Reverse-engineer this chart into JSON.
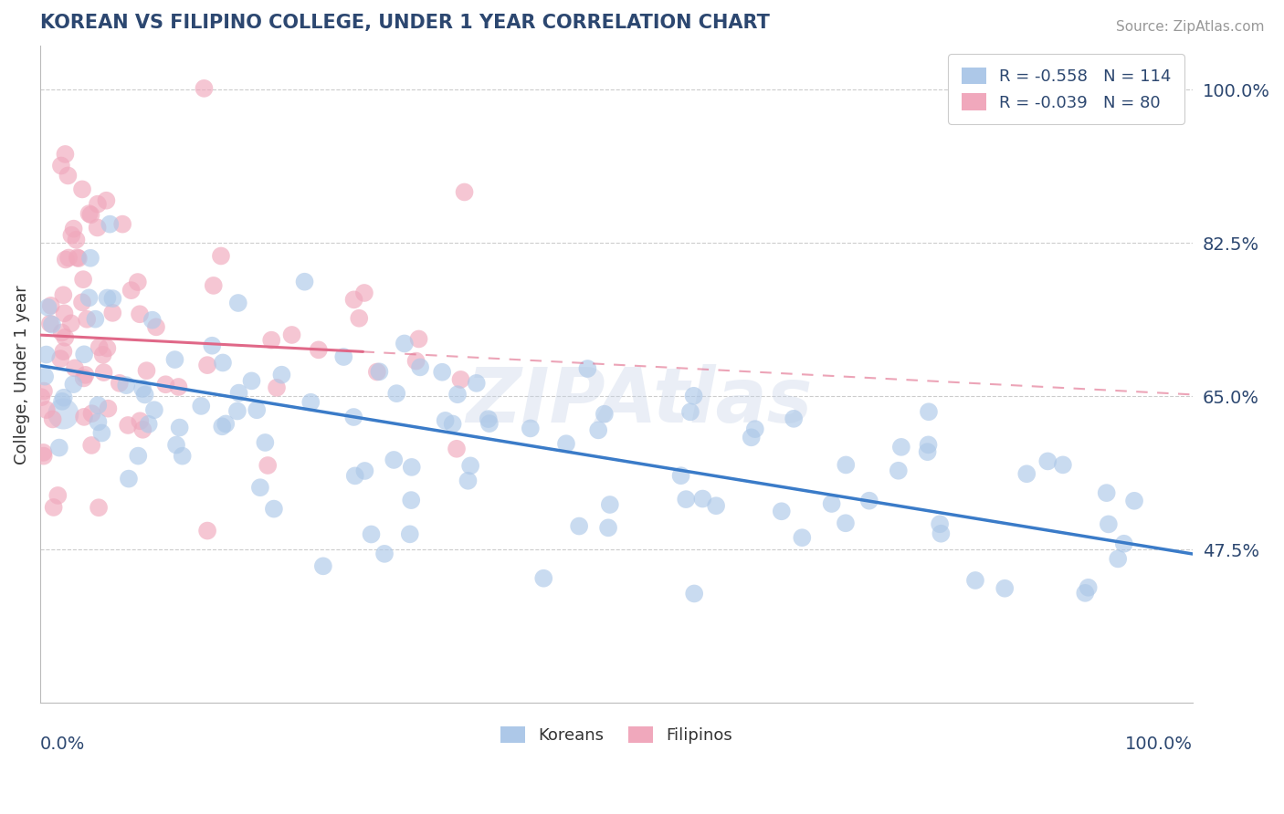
{
  "title": "KOREAN VS FILIPINO COLLEGE, UNDER 1 YEAR CORRELATION CHART",
  "source_text": "Source: ZipAtlas.com",
  "ylabel": "College, Under 1 year",
  "right_yticks": [
    "100.0%",
    "82.5%",
    "65.0%",
    "47.5%"
  ],
  "right_ytick_vals": [
    1.0,
    0.825,
    0.65,
    0.475
  ],
  "watermark": "ZIPAtlas",
  "legend_korean": "R = -0.558   N = 114",
  "legend_filipino": "R = -0.039   N = 80",
  "korean_color": "#adc8e8",
  "filipino_color": "#f0a8bc",
  "korean_line_color": "#3a7bc8",
  "filipino_line_color": "#e06888",
  "title_color": "#2c4770",
  "source_color": "#999999",
  "grid_color": "#cccccc",
  "background_color": "#ffffff",
  "xlim": [
    0,
    1.0
  ],
  "ylim": [
    0.3,
    1.05
  ],
  "n_korean": 114,
  "n_filipino": 80,
  "korean_seed": 12,
  "filipino_seed": 7
}
